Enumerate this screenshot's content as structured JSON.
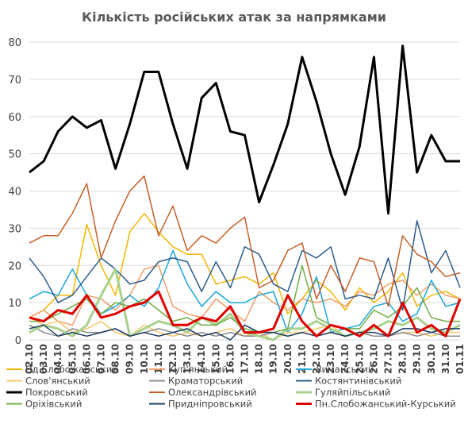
{
  "chart_data": {
    "type": "line",
    "title": "Кількість російських атак за напрямками",
    "xlabel": "",
    "ylabel": "",
    "ylim": [
      0,
      80
    ],
    "yticks": [
      0,
      10,
      20,
      30,
      40,
      50,
      60,
      70,
      80
    ],
    "grid": true,
    "legend_position": "bottom",
    "categories": [
      "02.10",
      "03.10",
      "04.10",
      "05.10",
      "06.10",
      "07.10",
      "08.10",
      "09.10",
      "10.10",
      "11.10",
      "12.10",
      "13.10",
      "14.10",
      "15.10",
      "16.10",
      "17.10",
      "18.10",
      "19.10",
      "20.10",
      "21.10",
      "22.10",
      "23.10",
      "24.10",
      "25.10",
      "26.10",
      "27.10",
      "28.10",
      "29.10",
      "30.10",
      "31.10",
      "01.11"
    ],
    "series": [
      {
        "name": "Пд.Слобожанський",
        "color": "#F2B705",
        "width": 1.5,
        "values": [
          6,
          8,
          12,
          12,
          31,
          20,
          12,
          29,
          34,
          29,
          25,
          23,
          23,
          15,
          16,
          17,
          15,
          18,
          7,
          11,
          16,
          13,
          8,
          14,
          10,
          13,
          18,
          9,
          12,
          13,
          11
        ]
      },
      {
        "name": "Куп'янський",
        "color": "#EF9E68",
        "width": 1.5,
        "values": [
          6,
          8,
          5,
          4,
          12,
          11,
          8,
          12,
          19,
          20,
          9,
          7,
          6,
          11,
          8,
          5,
          13,
          10,
          8,
          11,
          10,
          11,
          9,
          13,
          12,
          15,
          16,
          12,
          15,
          12,
          11
        ]
      },
      {
        "name": "Лиманський",
        "color": "#1BA6D8",
        "width": 1.5,
        "values": [
          11,
          13,
          12,
          19,
          12,
          7,
          9,
          12,
          9,
          14,
          24,
          15,
          9,
          13,
          10,
          10,
          12,
          13,
          2,
          7,
          17,
          2,
          3,
          4,
          9,
          10,
          5,
          7,
          16,
          9,
          10
        ]
      },
      {
        "name": "Слов'янський",
        "color": "#F5C86A",
        "width": 1.5,
        "values": [
          6,
          4,
          5,
          2,
          3,
          5,
          2,
          1,
          4,
          2,
          1,
          2,
          1,
          2,
          3,
          1,
          2,
          0,
          2,
          2,
          3,
          4,
          1,
          2,
          1,
          1,
          2,
          2,
          1,
          2,
          2
        ]
      },
      {
        "name": "Краматорський",
        "color": "#8C8C8C",
        "width": 1.5,
        "values": [
          4,
          2,
          1,
          3,
          2,
          2,
          3,
          1,
          2,
          3,
          2,
          1,
          2,
          1,
          2,
          1,
          1,
          2,
          1,
          2,
          1,
          2,
          1,
          2,
          1,
          1,
          2,
          1,
          2,
          1,
          1
        ]
      },
      {
        "name": "Костянтинівський",
        "color": "#2D5C8C",
        "width": 1.5,
        "values": [
          22,
          17,
          10,
          12,
          17,
          22,
          19,
          15,
          16,
          21,
          22,
          21,
          13,
          21,
          14,
          25,
          23,
          15,
          13,
          24,
          22,
          25,
          11,
          12,
          11,
          22,
          8,
          32,
          18,
          24,
          14
        ]
      },
      {
        "name": "Покровський",
        "color": "#000000",
        "width": 3,
        "values": [
          45,
          48,
          56,
          60,
          57,
          59,
          46,
          58,
          72,
          72,
          58,
          46,
          65,
          69,
          56,
          55,
          37,
          47,
          58,
          76,
          64,
          50,
          39,
          52,
          76,
          34,
          79,
          45,
          55,
          48,
          48
        ]
      },
      {
        "name": "Олександрівський",
        "color": "#C5602A",
        "width": 1.5,
        "values": [
          26,
          28,
          28,
          34,
          42,
          22,
          32,
          40,
          44,
          28,
          36,
          24,
          28,
          26,
          30,
          33,
          14,
          16,
          24,
          26,
          11,
          20,
          13,
          22,
          21,
          9,
          28,
          23,
          21,
          17,
          18
        ]
      },
      {
        "name": "Гуляйпільський",
        "color": "#A9D18E",
        "width": 3,
        "values": [
          2,
          4,
          3,
          1,
          4,
          12,
          19,
          1,
          3,
          5,
          4,
          2,
          6,
          4,
          7,
          2,
          1,
          0,
          3,
          3,
          5,
          3,
          1,
          2,
          3,
          5,
          4,
          6,
          3,
          2,
          4
        ]
      },
      {
        "name": "Оріхівський",
        "color": "#70AD47",
        "width": 1.5,
        "values": [
          5,
          5,
          7,
          9,
          11,
          7,
          10,
          9,
          11,
          8,
          5,
          6,
          4,
          4,
          6,
          3,
          2,
          2,
          3,
          20,
          6,
          4,
          3,
          3,
          8,
          6,
          9,
          14,
          6,
          5,
          5
        ]
      },
      {
        "name": "Придніпровський",
        "color": "#1F3D63",
        "width": 1.5,
        "values": [
          3,
          4,
          1,
          2,
          1,
          2,
          3,
          1,
          2,
          1,
          2,
          3,
          1,
          2,
          0,
          4,
          2,
          2,
          1,
          2,
          1,
          2,
          1,
          2,
          2,
          1,
          3,
          3,
          2,
          3,
          3
        ]
      },
      {
        "name": "Пн.Слобожанський-Курський",
        "color": "#E00000",
        "width": 3,
        "values": [
          6,
          5,
          8,
          7,
          12,
          6,
          7,
          9,
          10,
          13,
          4,
          4,
          6,
          5,
          9,
          2,
          2,
          3,
          12,
          5,
          1,
          4,
          3,
          1,
          4,
          1,
          10,
          2,
          4,
          1,
          11
        ]
      }
    ]
  }
}
